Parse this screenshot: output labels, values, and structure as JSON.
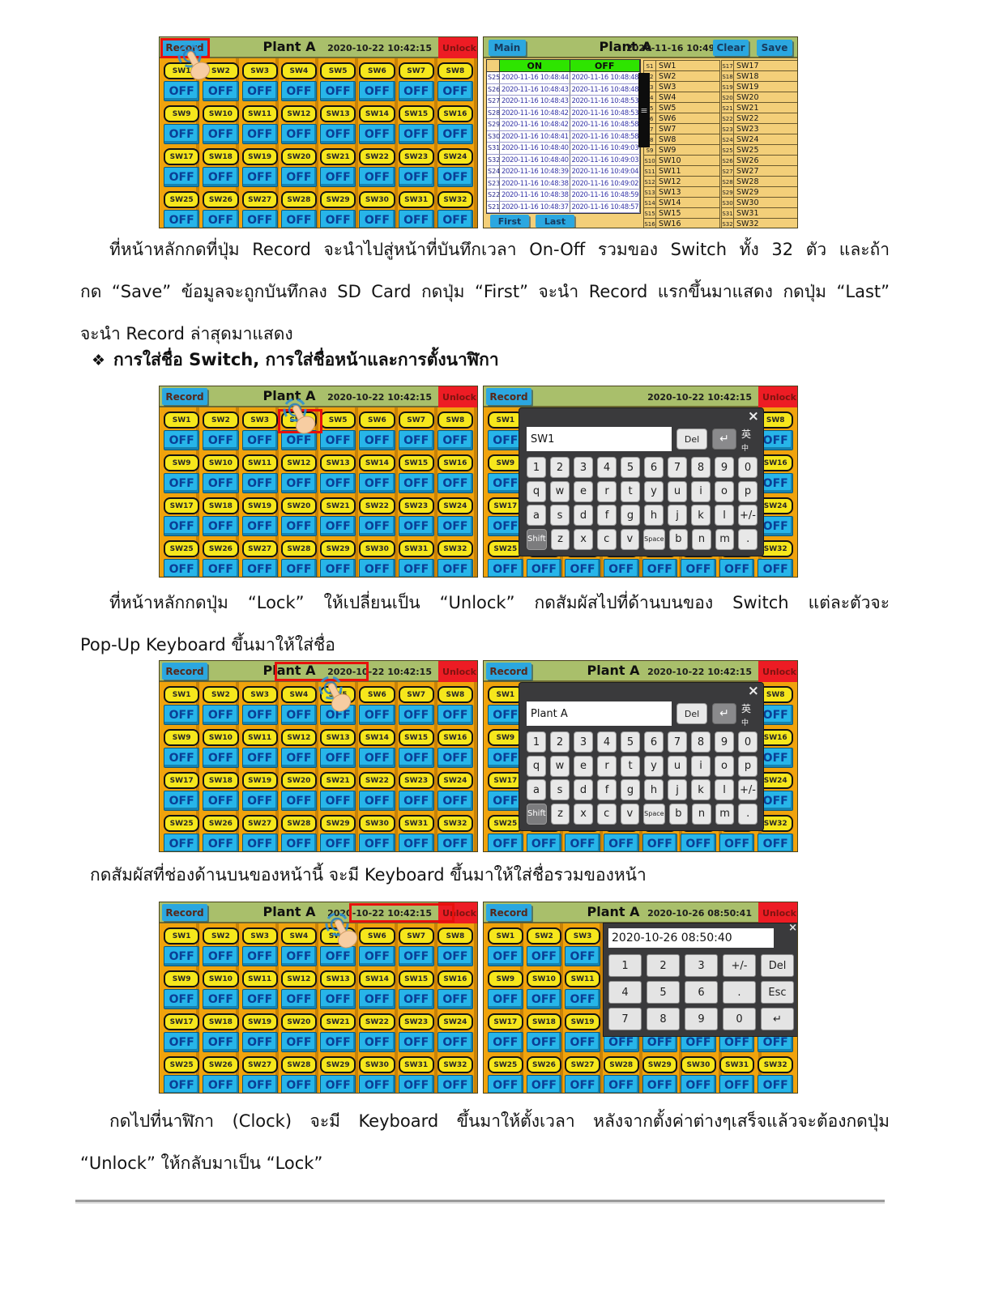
{
  "colors": {
    "header_green": "#a9bf6b",
    "button_blue": "#2ba7e0",
    "button_red": "#ed1c24",
    "panel_orange": "#f0a30c",
    "switch_yellow": "#f6e71c",
    "off_blue": "#27b5e9",
    "table_green": "#2ee400",
    "record_tan": "#f3cf79",
    "popup_gray": "#3a3a3c",
    "key_gray": "#e8e8e8",
    "highlight_red": "#e8100c",
    "text_navy": "#0a3f96"
  },
  "text": {
    "p1_lines": [
      "ที่หน้าหลักกดที่ปุ่ม Record จะนำไปสู่หน้าที่บันทึกเวลา On-Off รวมของ Switch ทั้ง 32 ตัว และถ้า",
      "กด “Save” ข้อมูลจะถูกบันทึกลง SD Card กดปุ่ม “First” จะนำ Record แรกขึ้นมาแสดง กดปุ่ม “Last”",
      "จะนำ Record ล่าสุดมาแสดง"
    ],
    "heading_bullet": "❖",
    "heading": "การใส่ชื่อ Switch, การใส่ชื่อหน้าและการตั้งนาฬิกา",
    "p2_lines": [
      "ที่หน้าหลักกดปุ่ม “Lock”  ให้เปลี่ยนเป็น “Unlock”  กดสัมผัสไปที่ด้านบนของ Switch  แต่ละตัวจะ",
      "Pop-Up Keyboard ขึ้นมาให้ใส่ชื่อ"
    ],
    "p3_lines": [
      "กดสัมผัสที่ช่องด้านบนของหน้านี้ จะมี Keyboard ขึ้นมาให้ใส่ชื่อรวมของหน้า"
    ],
    "p4_lines": [
      "กดไปที่นาฬิกา (Clock) จะมี Keyboard ขึ้นมาให้ตั้งเวลา หลังจากตั้งค่าต่างๆเสร็จแล้วจะต้องกดปุ่ม",
      "“Unlock” ให้กลับมาเป็น “Lock”"
    ]
  },
  "panel": {
    "record_label": "Record",
    "unlock_label": "Unlock",
    "title": "Plant A",
    "clock_a": "2020-10-22 10:42:15",
    "clock_d": "2020-10-26 08:50:41",
    "off_label": "OFF",
    "switches": [
      "SW1",
      "SW2",
      "SW3",
      "SW4",
      "SW5",
      "SW6",
      "SW7",
      "SW8",
      "SW9",
      "SW10",
      "SW11",
      "SW12",
      "SW13",
      "SW14",
      "SW15",
      "SW16",
      "SW17",
      "SW18",
      "SW19",
      "SW20",
      "SW21",
      "SW22",
      "SW23",
      "SW24",
      "SW25",
      "SW26",
      "SW27",
      "SW28",
      "SW29",
      "SW30",
      "SW31",
      "SW32"
    ]
  },
  "record_page": {
    "main_label": "Main",
    "title": "Plant A",
    "clock": "2020-11-16 10:49:13",
    "clear_label": "Clear",
    "save_label": "Save",
    "col_on": "ON",
    "col_off": "OFF",
    "first_label": "First",
    "last_label": "Last",
    "scrollbar_glyph": "≡",
    "rows": [
      {
        "id": "S25",
        "on": "2020-11-16 10:48:44",
        "off": "2020-11-16 10:48:48"
      },
      {
        "id": "S26",
        "on": "2020-11-16 10:48:43",
        "off": "2020-11-16 10:48:48"
      },
      {
        "id": "S27",
        "on": "2020-11-16 10:48:43",
        "off": "2020-11-16 10:48:53"
      },
      {
        "id": "S28",
        "on": "2020-11-16 10:48:42",
        "off": "2020-11-16 10:48:53"
      },
      {
        "id": "S29",
        "on": "2020-11-16 10:48:42",
        "off": "2020-11-16 10:48:58"
      },
      {
        "id": "S30",
        "on": "2020-11-16 10:48:41",
        "off": "2020-11-16 10:48:58"
      },
      {
        "id": "S31",
        "on": "2020-11-16 10:48:40",
        "off": "2020-11-16 10:49:03"
      },
      {
        "id": "S32",
        "on": "2020-11-16 10:48:40",
        "off": "2020-11-16 10:49:03"
      },
      {
        "id": "S24",
        "on": "2020-11-16 10:48:39",
        "off": "2020-11-16 10:49:04"
      },
      {
        "id": "S23",
        "on": "2020-11-16 10:48:38",
        "off": "2020-11-16 10:49:02"
      },
      {
        "id": "S22",
        "on": "2020-11-16 10:48:38",
        "off": "2020-11-16 10:48:59"
      },
      {
        "id": "S21",
        "on": "2020-11-16 10:48:37",
        "off": "2020-11-16 10:48:57"
      }
    ],
    "legend_left": [
      {
        "id": "S1",
        "name": "SW1"
      },
      {
        "id": "S2",
        "name": "SW2"
      },
      {
        "id": "S3",
        "name": "SW3"
      },
      {
        "id": "S4",
        "name": "SW4"
      },
      {
        "id": "S5",
        "name": "SW5"
      },
      {
        "id": "S6",
        "name": "SW6"
      },
      {
        "id": "S7",
        "name": "SW7"
      },
      {
        "id": "S8",
        "name": "SW8"
      },
      {
        "id": "S9",
        "name": "SW9"
      },
      {
        "id": "S10",
        "name": "SW10"
      },
      {
        "id": "S11",
        "name": "SW11"
      },
      {
        "id": "S12",
        "name": "SW12"
      },
      {
        "id": "S13",
        "name": "SW13"
      },
      {
        "id": "S14",
        "name": "SW14"
      },
      {
        "id": "S15",
        "name": "SW15"
      },
      {
        "id": "S16",
        "name": "SW16"
      }
    ],
    "legend_right": [
      {
        "id": "S17",
        "name": "SW17"
      },
      {
        "id": "S18",
        "name": "SW18"
      },
      {
        "id": "S19",
        "name": "SW19"
      },
      {
        "id": "S20",
        "name": "SW20"
      },
      {
        "id": "S21",
        "name": "SW21"
      },
      {
        "id": "S22",
        "name": "SW22"
      },
      {
        "id": "S23",
        "name": "SW23"
      },
      {
        "id": "S24",
        "name": "SW24"
      },
      {
        "id": "S25",
        "name": "SW25"
      },
      {
        "id": "S26",
        "name": "SW26"
      },
      {
        "id": "S27",
        "name": "SW27"
      },
      {
        "id": "S28",
        "name": "SW28"
      },
      {
        "id": "S29",
        "name": "SW29"
      },
      {
        "id": "S30",
        "name": "SW30"
      },
      {
        "id": "S31",
        "name": "SW31"
      },
      {
        "id": "S32",
        "name": "SW32"
      }
    ]
  },
  "keyboard": {
    "close_label": "×",
    "del_label": "Del",
    "enter_label": "↵",
    "lang_top": "英",
    "lang_sub": "中",
    "input_sw": "SW1",
    "input_page": "Plant A",
    "rows": [
      [
        "1",
        "2",
        "3",
        "4",
        "5",
        "6",
        "7",
        "8",
        "9",
        "0"
      ],
      [
        "q",
        "w",
        "e",
        "r",
        "t",
        "y",
        "u",
        "i",
        "o",
        "p"
      ],
      [
        "a",
        "s",
        "d",
        "f",
        "g",
        "h",
        "j",
        "k",
        "l",
        "+/-"
      ],
      [
        "Shift",
        "z",
        "x",
        "c",
        "v",
        "Space",
        "b",
        "n",
        "m",
        "."
      ]
    ]
  },
  "keypad": {
    "close_label": "×",
    "value": "2020-10-26 08:50:40",
    "rows": [
      [
        "1",
        "2",
        "3",
        "+/-",
        "Del"
      ],
      [
        "4",
        "5",
        "6",
        ".",
        "Esc"
      ],
      [
        "7",
        "8",
        "9",
        "0",
        "↵"
      ]
    ]
  }
}
